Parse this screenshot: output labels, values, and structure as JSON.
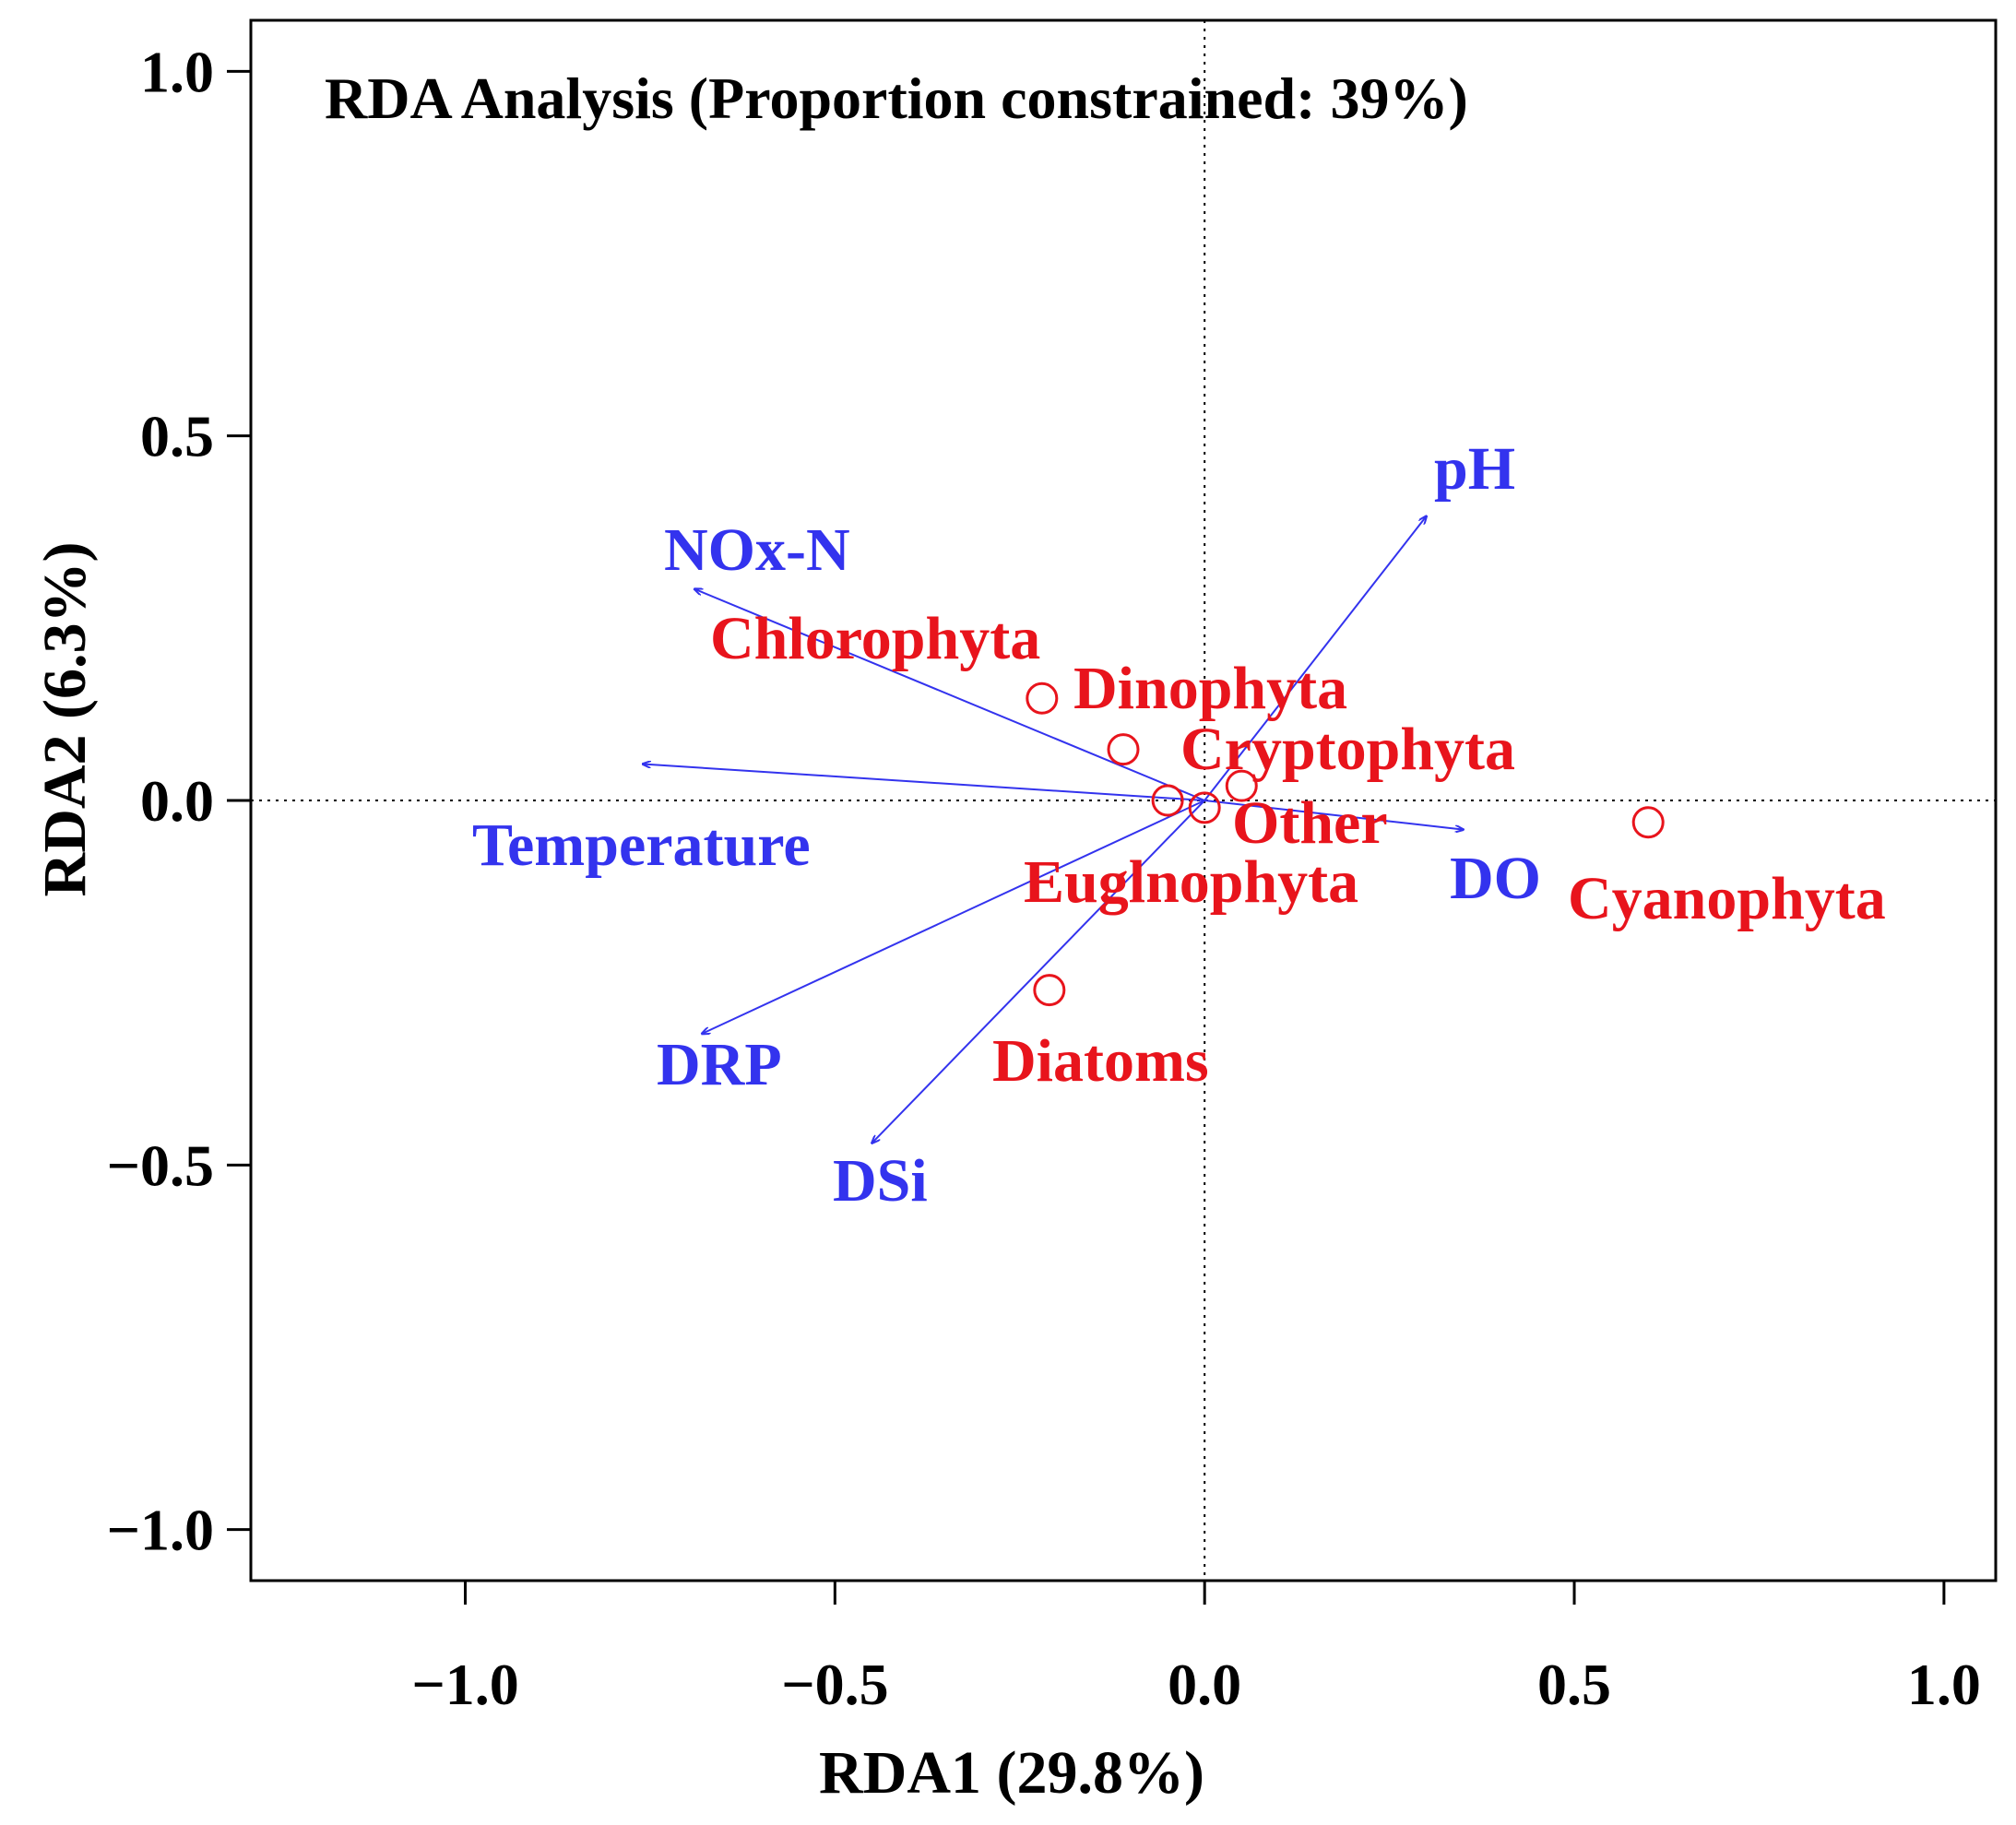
{
  "chart_data": {
    "type": "scatter",
    "title": "RDA Analysis (Proportion constrained: 39%)",
    "xlabel": "RDA1  (29.8%)",
    "ylabel": "RDA2  (6.3%)",
    "xlim": [
      -1.29,
      1.07
    ],
    "ylim": [
      -1.07,
      1.07
    ],
    "xticks": [
      -1.0,
      -0.5,
      0.0,
      0.5,
      1.0
    ],
    "xtick_labels": [
      "−1.0",
      "−0.5",
      "0.0",
      "0.5",
      "1.0"
    ],
    "yticks": [
      -1.0,
      -0.5,
      0.0,
      0.5,
      1.0
    ],
    "ytick_labels": [
      "−1.0",
      "−0.5",
      "0.0",
      "0.5",
      "1.0"
    ],
    "reference_lines": {
      "x": 0.0,
      "y": 0.0,
      "style": "dotted"
    },
    "colors": {
      "environment": "#3333ee",
      "species": "#e8141c",
      "axis": "#000000"
    },
    "environment_vectors": [
      {
        "name": "pH",
        "label": "pH",
        "x": 0.3,
        "y": 0.39
      },
      {
        "name": "NOx-N",
        "label": "NOx-N",
        "x": -0.69,
        "y": 0.29
      },
      {
        "name": "Temperature",
        "label": "Temperature",
        "x": -0.76,
        "y": 0.05
      },
      {
        "name": "DO",
        "label": "DO",
        "x": 0.35,
        "y": -0.04
      },
      {
        "name": "DRP",
        "label": "DRP",
        "x": -0.68,
        "y": -0.32
      },
      {
        "name": "DSi",
        "label": "DSi",
        "x": -0.45,
        "y": -0.47
      }
    ],
    "species_scores": [
      {
        "name": "Chlorophyta",
        "label": "Chlorophyta",
        "x": -0.22,
        "y": 0.14
      },
      {
        "name": "Dinophyta",
        "label": "Dinophyta",
        "x": -0.11,
        "y": 0.07
      },
      {
        "name": "Cryptophyta",
        "label": "Cryptophyta",
        "x": 0.05,
        "y": 0.02
      },
      {
        "name": "Other",
        "label": "Other",
        "x": 0.0,
        "y": -0.01
      },
      {
        "name": "Euglnophyta",
        "label": "Euglnophyta",
        "x": -0.05,
        "y": 0.0
      },
      {
        "name": "Cyanophyta",
        "label": "Cyanophyta",
        "x": 0.6,
        "y": -0.03
      },
      {
        "name": "Diatoms",
        "label": "Diatoms",
        "x": -0.21,
        "y": -0.26
      }
    ]
  }
}
